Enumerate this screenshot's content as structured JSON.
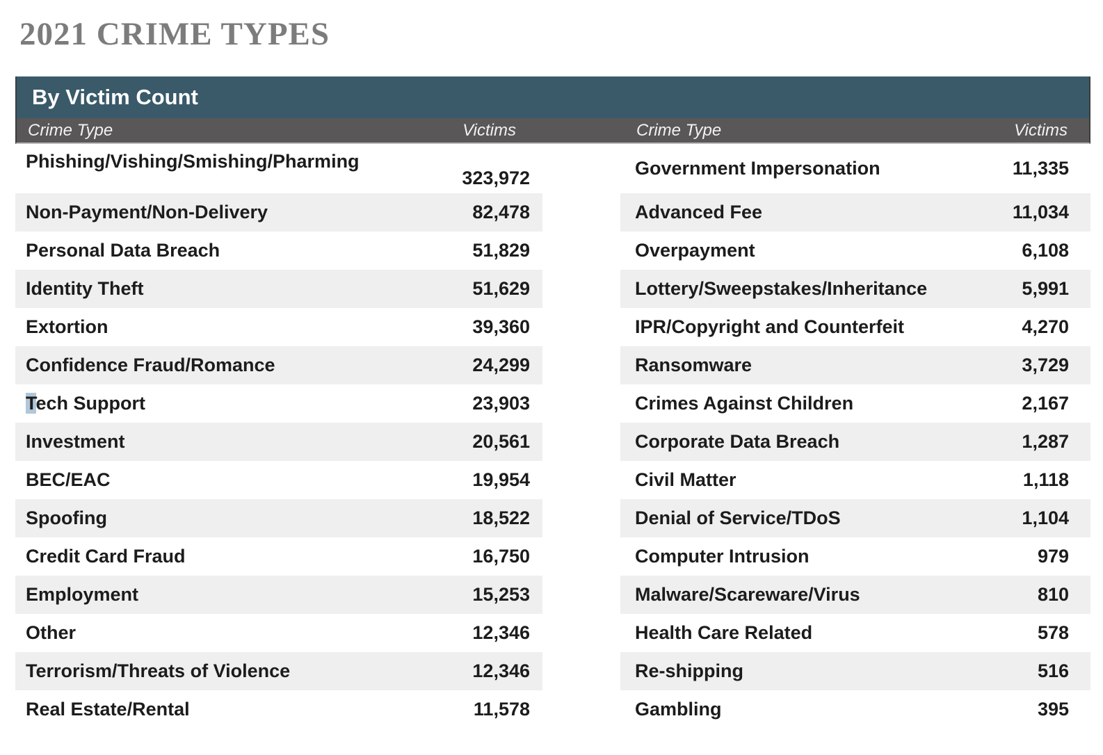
{
  "page": {
    "title": "2021 CRIME TYPES"
  },
  "table": {
    "band_header": "By Victim Count",
    "col_headers": {
      "crime_type": "Crime Type",
      "victims": "Victims"
    },
    "left_rows": [
      {
        "label": "Phishing/Vishing/Smishing/Pharming",
        "value": "323,972"
      },
      {
        "label": "Non-Payment/Non-Delivery",
        "value": "82,478"
      },
      {
        "label": "Personal Data Breach",
        "value": "51,829"
      },
      {
        "label": "Identity Theft",
        "value": "51,629"
      },
      {
        "label": "Extortion",
        "value": "39,360"
      },
      {
        "label": "Confidence Fraud/Romance",
        "value": "24,299"
      },
      {
        "label": "Tech Support",
        "value": "23,903",
        "selected_prefix": "T"
      },
      {
        "label": "Investment",
        "value": "20,561"
      },
      {
        "label": "BEC/EAC",
        "value": "19,954"
      },
      {
        "label": "Spoofing",
        "value": "18,522"
      },
      {
        "label": "Credit Card Fraud",
        "value": "16,750"
      },
      {
        "label": "Employment",
        "value": "15,253"
      },
      {
        "label": "Other",
        "value": "12,346"
      },
      {
        "label": "Terrorism/Threats of Violence",
        "value": "12,346"
      },
      {
        "label": "Real Estate/Rental",
        "value": "11,578"
      }
    ],
    "right_rows": [
      {
        "label": "Government Impersonation",
        "value": "11,335"
      },
      {
        "label": "Advanced Fee",
        "value": "11,034"
      },
      {
        "label": "Overpayment",
        "value": "6,108"
      },
      {
        "label": "Lottery/Sweepstakes/Inheritance",
        "value": "5,991"
      },
      {
        "label": "IPR/Copyright and Counterfeit",
        "value": "4,270"
      },
      {
        "label": "Ransomware",
        "value": "3,729"
      },
      {
        "label": "Crimes Against Children",
        "value": "2,167"
      },
      {
        "label": "Corporate Data Breach",
        "value": "1,287"
      },
      {
        "label": "Civil Matter",
        "value": "1,118"
      },
      {
        "label": "Denial of Service/TDoS",
        "value": "1,104"
      },
      {
        "label": "Computer Intrusion",
        "value": "979"
      },
      {
        "label": "Malware/Scareware/Virus",
        "value": "810"
      },
      {
        "label": "Health Care Related",
        "value": "578"
      },
      {
        "label": "Re-shipping",
        "value": "516"
      },
      {
        "label": "Gambling",
        "value": "395"
      }
    ]
  },
  "colors": {
    "band": "#3A5A69",
    "subheader": "#595757",
    "row_alt": "#EFEFEF",
    "title": "#7C7C7C",
    "text": "#1C1C1C",
    "bar_text": "#FFFFFF",
    "selection": "#B0C7DA"
  }
}
